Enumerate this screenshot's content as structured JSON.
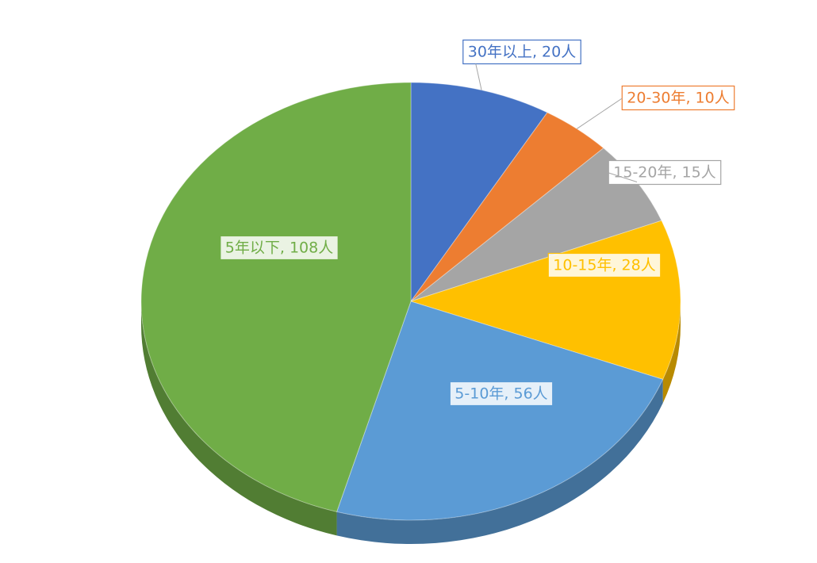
{
  "chart_data": {
    "type": "pie",
    "values": [
      20,
      10,
      15,
      28,
      56,
      108
    ],
    "value_labels": [
      "30年以上, 20人",
      "20-30年, 10人",
      "15-20年, 15人",
      "10-15年, 28人",
      "5-10年, 56人",
      "5年以下, 108人"
    ],
    "colors": [
      "#4472c4",
      "#ed7d31",
      "#a5a5a5",
      "#ffc000",
      "#5b9bd5",
      "#70ad47"
    ]
  }
}
